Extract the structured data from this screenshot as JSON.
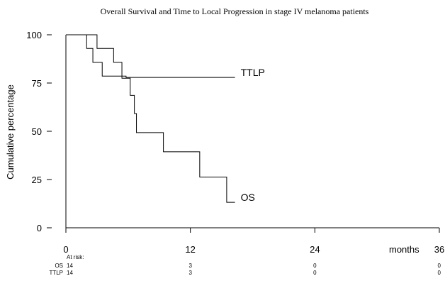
{
  "chart_data": {
    "type": "line",
    "step": true,
    "title": "Overall Survival and Time to Local Progression in stage IV melanoma patients",
    "xlabel": "months",
    "ylabel": "Cumulative percentage",
    "xlim": [
      0,
      36
    ],
    "ylim": [
      0,
      100
    ],
    "xticks": [
      0,
      12,
      24,
      36
    ],
    "yticks": [
      0,
      25,
      50,
      75,
      100
    ],
    "grid": false,
    "series": [
      {
        "name": "TTLP",
        "x": [
          0,
          2.0,
          2.6,
          3.5,
          5.8,
          16.3
        ],
        "y": [
          100,
          92.9,
          85.7,
          78.6,
          77.9,
          77.9
        ]
      },
      {
        "name": "OS",
        "x": [
          0,
          3.0,
          4.6,
          5.4,
          6.2,
          6.6,
          6.8,
          9.4,
          12.9,
          15.5,
          16.3
        ],
        "y": [
          100,
          92.9,
          85.7,
          77.5,
          68.6,
          59.2,
          49.3,
          39.4,
          26.3,
          13.2,
          13.2
        ]
      }
    ],
    "at_risk": {
      "header": "At risk:",
      "times": [
        0,
        12,
        24,
        36
      ],
      "rows": [
        {
          "label": "OS",
          "counts": [
            "14",
            "3",
            "0",
            "0"
          ]
        },
        {
          "label": "TTLP",
          "counts": [
            "14",
            "3",
            "0",
            "0"
          ]
        }
      ]
    }
  }
}
